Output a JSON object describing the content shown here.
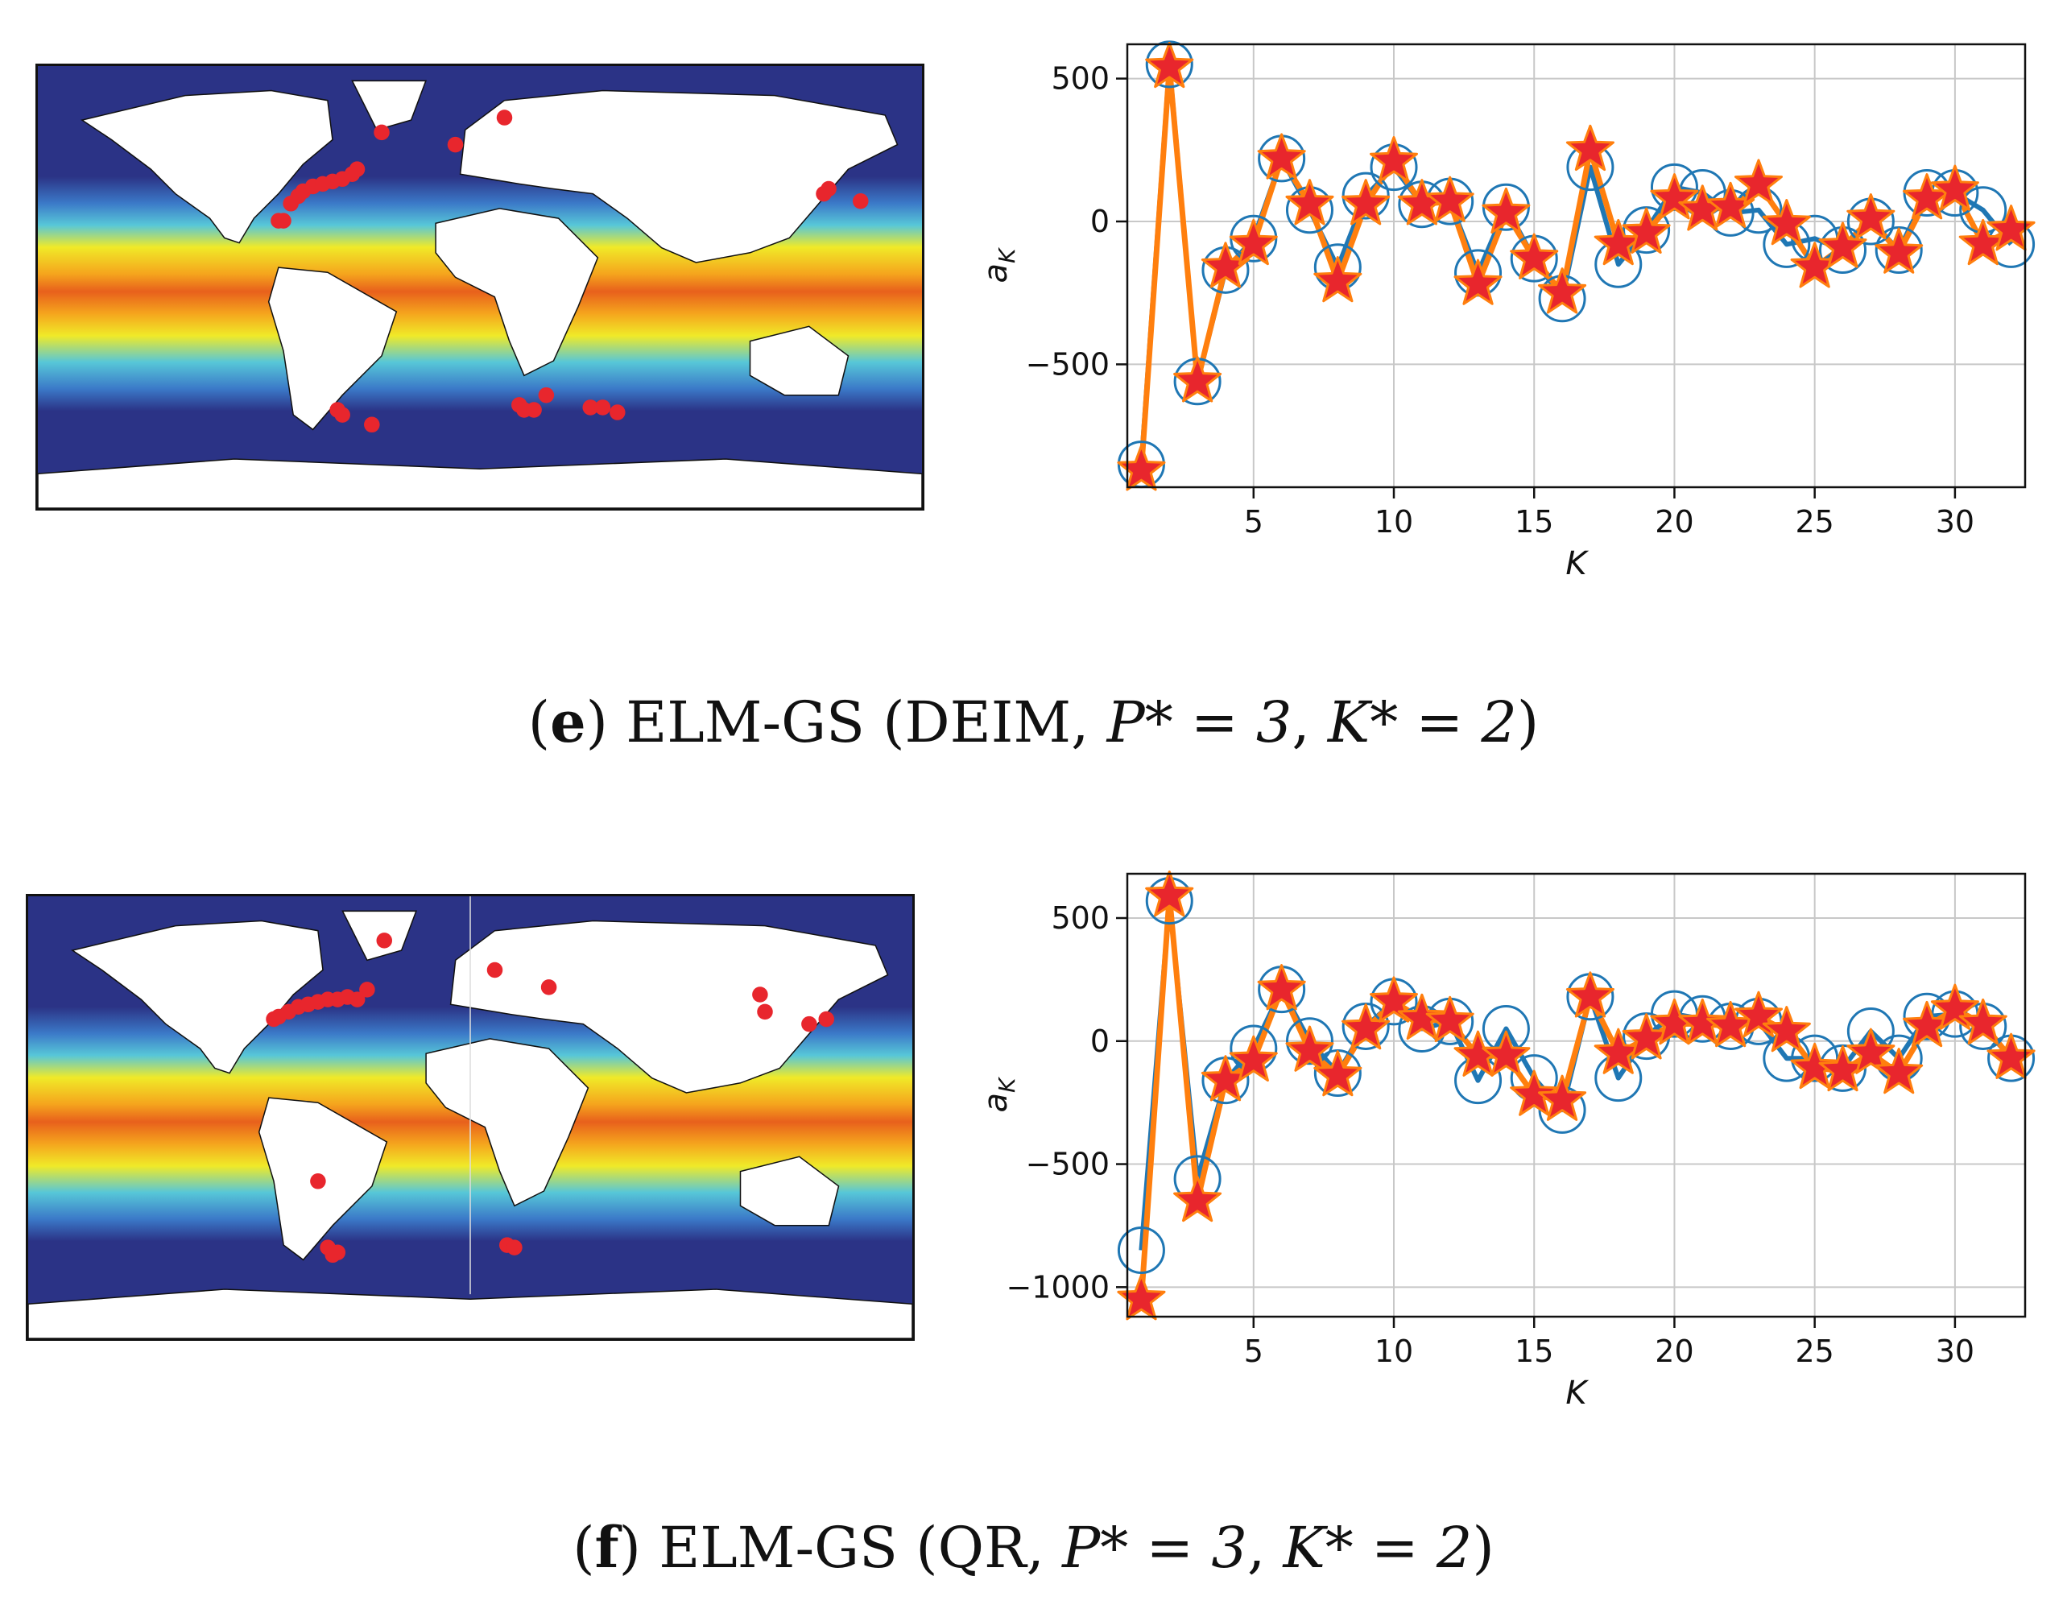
{
  "panels": [
    {
      "caption": {
        "label": "e",
        "method": "ELM-GS",
        "detail_prefix": "DEIM, ",
        "p_star": "P* = 3",
        "k_star": "K* = 2"
      },
      "map": {
        "ocean_color": "#2b3386",
        "land_color": "#ffffff",
        "point_color": "#e8262d",
        "points_lonlat": [
          [
            -82,
            27
          ],
          [
            -80,
            27
          ],
          [
            -77,
            34
          ],
          [
            -74,
            37
          ],
          [
            -72,
            39
          ],
          [
            -68,
            41
          ],
          [
            -64,
            42
          ],
          [
            -60,
            43
          ],
          [
            -56,
            44
          ],
          [
            -52,
            46
          ],
          [
            -50,
            48
          ],
          [
            -40,
            63
          ],
          [
            -10,
            58
          ],
          [
            10,
            69
          ],
          [
            140,
            38
          ],
          [
            142,
            40
          ],
          [
            155,
            35
          ],
          [
            -56,
            -52
          ],
          [
            -58,
            -50
          ],
          [
            -44,
            -56
          ],
          [
            16,
            -48
          ],
          [
            18,
            -50
          ],
          [
            22,
            -50
          ],
          [
            27,
            -44
          ],
          [
            45,
            -49
          ],
          [
            50,
            -49
          ],
          [
            56,
            -51
          ]
        ]
      },
      "chart_data": {
        "type": "line",
        "xlabel": "K",
        "ylabel": "a_K",
        "xlim": [
          0.5,
          32.5
        ],
        "ylim": [
          -930,
          620
        ],
        "xticks": [
          5,
          10,
          15,
          20,
          25,
          30
        ],
        "yticks": [
          -500,
          0,
          500
        ],
        "grid": true,
        "series": [
          {
            "marker": "circle",
            "color": "#1f77b4",
            "x": [
              1,
              2,
              3,
              4,
              5,
              6,
              7,
              8,
              9,
              10,
              11,
              12,
              13,
              14,
              15,
              16,
              17,
              18,
              19,
              20,
              21,
              22,
              23,
              24,
              25,
              26,
              27,
              28,
              29,
              30,
              31,
              32
            ],
            "values": [
              -850,
              550,
              -560,
              -170,
              -60,
              220,
              40,
              -160,
              90,
              190,
              60,
              70,
              -180,
              50,
              -130,
              -270,
              190,
              -150,
              -30,
              120,
              100,
              30,
              40,
              -80,
              -60,
              -100,
              0,
              -100,
              100,
              100,
              40,
              -80
            ]
          },
          {
            "marker": "star",
            "color": "#ff7f0e",
            "marker_fill": "#e8262d",
            "x": [
              1,
              2,
              3,
              4,
              5,
              6,
              7,
              8,
              9,
              10,
              11,
              12,
              13,
              14,
              15,
              16,
              17,
              18,
              19,
              20,
              21,
              22,
              23,
              24,
              25,
              26,
              27,
              28,
              29,
              30,
              31,
              32
            ],
            "values": [
              -870,
              540,
              -560,
              -160,
              -80,
              220,
              60,
              -210,
              60,
              210,
              60,
              70,
              -220,
              30,
              -130,
              -250,
              250,
              -80,
              -40,
              80,
              40,
              50,
              130,
              -10,
              -160,
              -90,
              10,
              -110,
              80,
              110,
              -80,
              -30
            ]
          }
        ]
      }
    },
    {
      "caption": {
        "label": "f",
        "method": "ELM-GS",
        "detail_prefix": "QR, ",
        "p_star": "P* = 3",
        "k_star": "K* = 2"
      },
      "map": {
        "ocean_color": "#2b3386",
        "land_color": "#ffffff",
        "point_color": "#e8262d",
        "points_lonlat": [
          [
            -80,
            40
          ],
          [
            -78,
            41
          ],
          [
            -74,
            43
          ],
          [
            -70,
            45
          ],
          [
            -66,
            46
          ],
          [
            -62,
            47
          ],
          [
            -58,
            48
          ],
          [
            -54,
            48
          ],
          [
            -50,
            49
          ],
          [
            -46,
            48
          ],
          [
            -42,
            52
          ],
          [
            -35,
            72
          ],
          [
            10,
            60
          ],
          [
            32,
            53
          ],
          [
            118,
            50
          ],
          [
            120,
            43
          ],
          [
            138,
            38
          ],
          [
            145,
            40
          ],
          [
            -62,
            -26
          ],
          [
            -58,
            -53
          ],
          [
            -56,
            -56
          ],
          [
            -54,
            -55
          ],
          [
            15,
            -52
          ],
          [
            18,
            -53
          ]
        ]
      },
      "chart_data": {
        "type": "line",
        "xlabel": "K",
        "ylabel": "a_K",
        "xlim": [
          0.5,
          32.5
        ],
        "ylim": [
          -1120,
          680
        ],
        "xticks": [
          5,
          10,
          15,
          20,
          25,
          30
        ],
        "yticks": [
          -1000,
          -500,
          0,
          500
        ],
        "grid": true,
        "series": [
          {
            "marker": "circle",
            "color": "#1f77b4",
            "x": [
              1,
              2,
              3,
              4,
              5,
              6,
              7,
              8,
              9,
              10,
              11,
              12,
              13,
              14,
              15,
              16,
              17,
              18,
              19,
              20,
              21,
              22,
              23,
              24,
              25,
              26,
              27,
              28,
              29,
              30,
              31,
              32
            ],
            "values": [
              -850,
              570,
              -560,
              -160,
              -30,
              210,
              0,
              -130,
              60,
              160,
              50,
              80,
              -160,
              50,
              -150,
              -280,
              180,
              -150,
              20,
              110,
              90,
              60,
              80,
              -70,
              -70,
              -110,
              40,
              -70,
              100,
              110,
              60,
              -70
            ]
          },
          {
            "marker": "star",
            "color": "#ff7f0e",
            "marker_fill": "#e8262d",
            "x": [
              1,
              2,
              3,
              4,
              5,
              6,
              7,
              8,
              9,
              10,
              11,
              12,
              13,
              14,
              15,
              16,
              17,
              18,
              19,
              20,
              21,
              22,
              23,
              24,
              25,
              26,
              27,
              28,
              29,
              30,
              31,
              32
            ],
            "values": [
              -1050,
              590,
              -650,
              -160,
              -80,
              210,
              -40,
              -140,
              50,
              160,
              90,
              80,
              -60,
              -60,
              -220,
              -240,
              180,
              -50,
              10,
              70,
              70,
              60,
              100,
              40,
              -110,
              -120,
              -50,
              -130,
              60,
              130,
              70,
              -70
            ]
          }
        ]
      }
    }
  ]
}
